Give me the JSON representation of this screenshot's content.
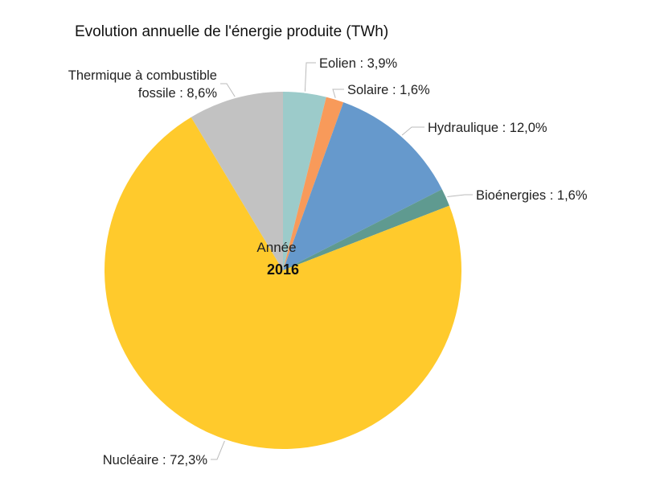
{
  "chart_data": {
    "type": "pie",
    "title": "Evolution annuelle de l'énergie produite (TWh)",
    "center_label": {
      "caption": "Année",
      "value": "2016"
    },
    "unit": "%",
    "slices": [
      {
        "name": "Eolien",
        "value": 3.9,
        "label": "Eolien : 3,9%",
        "color": "#9ccbca"
      },
      {
        "name": "Solaire",
        "value": 1.6,
        "label": "Solaire : 1,6%",
        "color": "#f89a5a"
      },
      {
        "name": "Hydraulique",
        "value": 12.0,
        "label": "Hydraulique : 12,0%",
        "color": "#6699cc"
      },
      {
        "name": "Bioénergies",
        "value": 1.6,
        "label": "Bioénergies : 1,6%",
        "color": "#5f9a90"
      },
      {
        "name": "Nucléaire",
        "value": 72.3,
        "label": "Nucléaire : 72,3%",
        "color": "#ffca2c"
      },
      {
        "name": "Thermique à combustible fossile",
        "value": 8.6,
        "label_lines": [
          "Thermique à combustible",
          "fossile : 8,6%"
        ],
        "color": "#c2c2c2"
      }
    ],
    "start_angle": "top",
    "direction": "clockwise"
  }
}
